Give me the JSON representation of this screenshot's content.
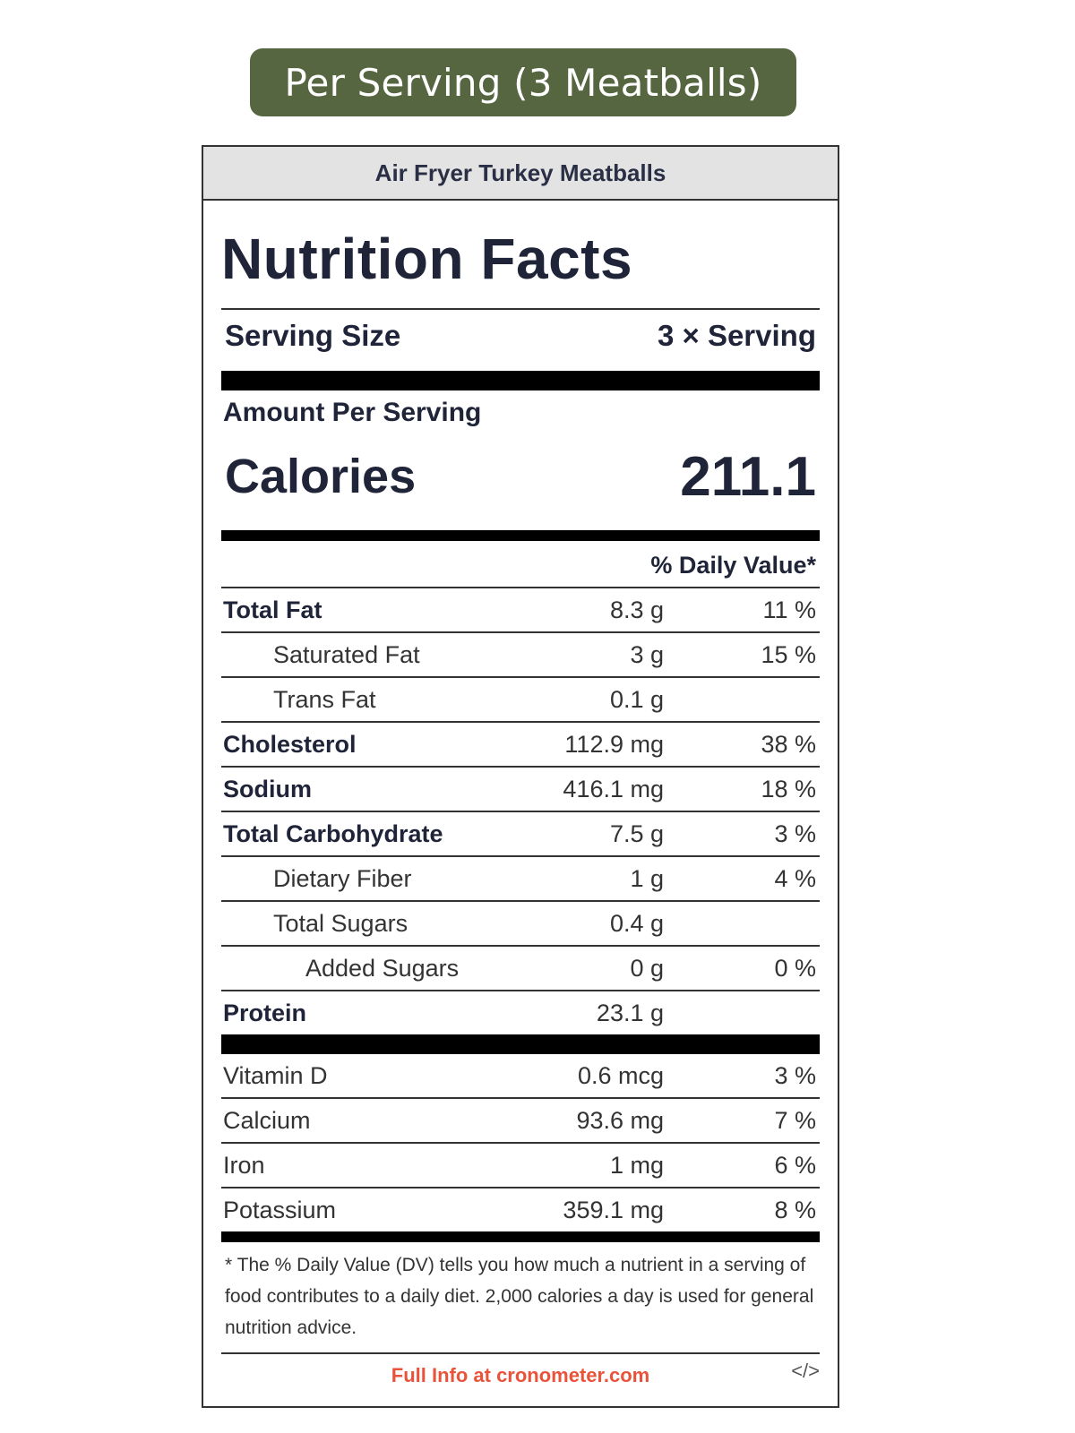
{
  "badge": {
    "text": "Per Serving (3 Meatballs)",
    "color": "#566640"
  },
  "label": {
    "recipe_name": "Air Fryer Turkey Meatballs",
    "title": "Nutrition Facts",
    "serving_size_label": "Serving Size",
    "serving_size_value": "3 × Serving",
    "amount_per_serving": "Amount Per Serving",
    "calories_label": "Calories",
    "calories_value": "211.1",
    "daily_value_header": "% Daily Value*",
    "nutrients": [
      {
        "name": "Total Fat",
        "amount": "8.3 g",
        "dv": "11 %"
      },
      {
        "name": "Saturated Fat",
        "amount": "3 g",
        "dv": "15 %"
      },
      {
        "name": "Trans Fat",
        "amount": "0.1 g",
        "dv": ""
      },
      {
        "name": "Cholesterol",
        "amount": "112.9 mg",
        "dv": "38 %"
      },
      {
        "name": "Sodium",
        "amount": "416.1 mg",
        "dv": "18 %"
      },
      {
        "name": "Total Carbohydrate",
        "amount": "7.5 g",
        "dv": "3 %"
      },
      {
        "name": "Dietary Fiber",
        "amount": "1 g",
        "dv": "4 %"
      },
      {
        "name": "Total Sugars",
        "amount": "0.4 g",
        "dv": ""
      },
      {
        "name": "Added Sugars",
        "amount": "0 g",
        "dv": "0 %"
      },
      {
        "name": "Protein",
        "amount": "23.1 g",
        "dv": ""
      }
    ],
    "vitamins": [
      {
        "name": "Vitamin D",
        "amount": "0.6 mcg",
        "dv": "3 %"
      },
      {
        "name": "Calcium",
        "amount": "93.6 mg",
        "dv": "7 %"
      },
      {
        "name": "Iron",
        "amount": "1 mg",
        "dv": "6 %"
      },
      {
        "name": "Potassium",
        "amount": "359.1 mg",
        "dv": "8 %"
      }
    ],
    "footnote": "* The % Daily Value (DV) tells you how much a nutrient in a serving of food contributes to a daily diet. 2,000 calories a day is used for general nutrition advice.",
    "footer_link": "Full Info at cronometer.com",
    "embed_icon": "</>"
  }
}
